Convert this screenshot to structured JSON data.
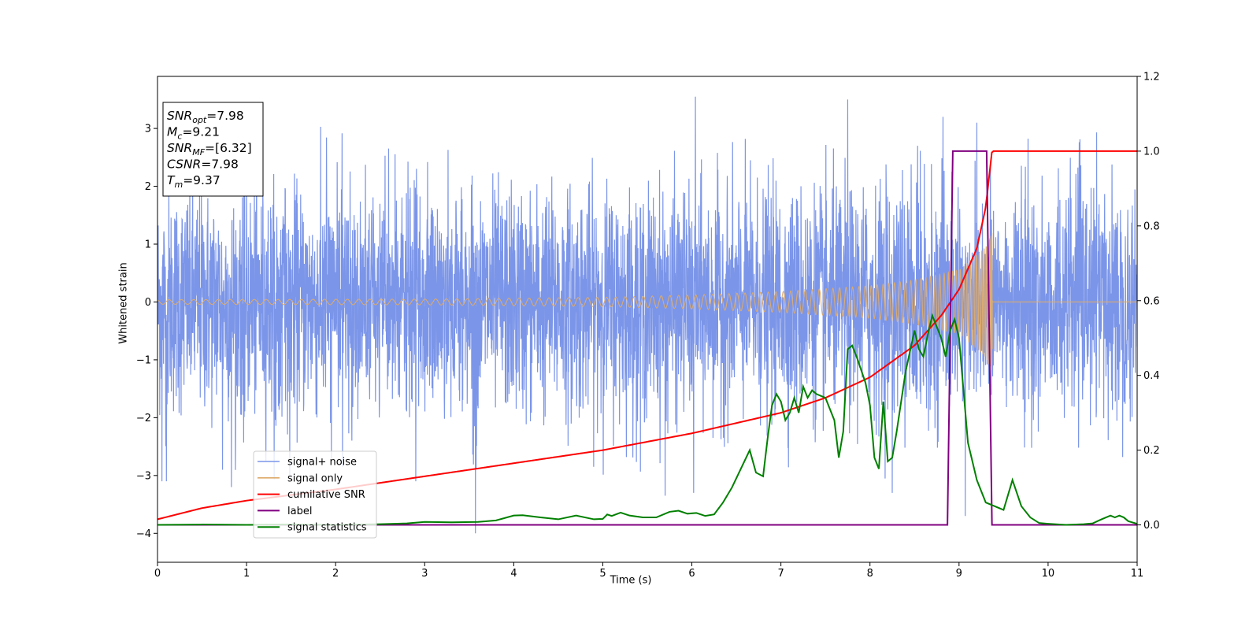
{
  "chart_data": {
    "type": "line",
    "xlabel": "Time (s)",
    "ylabel": "Whitened strain",
    "xlim": [
      0,
      11
    ],
    "ylim": [
      -4.5,
      3.9
    ],
    "y2lim": [
      -0.1,
      1.2
    ],
    "xticks": [
      0,
      1,
      2,
      3,
      4,
      5,
      6,
      7,
      8,
      9,
      10,
      11
    ],
    "yticks": [
      -4,
      -3,
      -2,
      -1,
      0,
      1,
      2,
      3
    ],
    "y2ticks": [
      "0.0",
      "0.2",
      "0.4",
      "0.6",
      "0.8",
      "1.0",
      "1.2"
    ],
    "legend_position": "lower-left",
    "annotation": {
      "lines": [
        {
          "base": "SNR",
          "sub": "opt",
          "value": "=7.98"
        },
        {
          "base": "M",
          "sub": "c",
          "value": "=9.21"
        },
        {
          "base": "SNR",
          "sub": "MF",
          "value": "=[6.32]"
        },
        {
          "base": "CSNR",
          "sub": "",
          "value": "=7.98"
        },
        {
          "base": "T",
          "sub": "m",
          "value": "=9.37"
        }
      ]
    },
    "series": [
      {
        "name": "signal+ noise",
        "color": "#7b95e8",
        "axis": "left",
        "kind": "noise",
        "amplitude_envelope": 3.1,
        "notable_spikes": [
          {
            "x": 0.05,
            "y": -3.1
          },
          {
            "x": 0.1,
            "y": -3.1
          },
          {
            "x": 0.73,
            "y": -2.9
          },
          {
            "x": 0.83,
            "y": -3.2
          },
          {
            "x": 2.9,
            "y": -3.1
          },
          {
            "x": 3.57,
            "y": -4.0
          },
          {
            "x": 5.7,
            "y": -3.35
          },
          {
            "x": 6.04,
            "y": 3.55
          },
          {
            "x": 6.02,
            "y": -3.3
          },
          {
            "x": 7.75,
            "y": 3.5
          },
          {
            "x": 8.25,
            "y": -3.3
          },
          {
            "x": 8.82,
            "y": 3.2
          },
          {
            "x": 9.07,
            "y": -3.7
          },
          {
            "x": 9.2,
            "y": 3.1
          }
        ]
      },
      {
        "name": "signal only",
        "color": "#deab6b",
        "axis": "left",
        "kind": "chirp",
        "envelope": [
          [
            0,
            0.04
          ],
          [
            3,
            0.05
          ],
          [
            5,
            0.08
          ],
          [
            6,
            0.12
          ],
          [
            7,
            0.18
          ],
          [
            8,
            0.28
          ],
          [
            8.5,
            0.38
          ],
          [
            9,
            0.55
          ],
          [
            9.3,
            0.95
          ],
          [
            9.37,
            1.2
          ],
          [
            9.38,
            0
          ],
          [
            11,
            0
          ]
        ]
      },
      {
        "name": "cumilative SNR",
        "color": "#ff0000",
        "axis": "right",
        "x": [
          0,
          0.5,
          1,
          1.5,
          2,
          3,
          4,
          5,
          6,
          7,
          7.5,
          8,
          8.5,
          8.8,
          9.0,
          9.2,
          9.3,
          9.37,
          10,
          11
        ],
        "y": [
          0.015,
          0.045,
          0.065,
          0.08,
          0.095,
          0.13,
          0.165,
          0.2,
          0.245,
          0.3,
          0.34,
          0.395,
          0.48,
          0.56,
          0.63,
          0.74,
          0.85,
          1.0,
          1.0,
          1.0
        ]
      },
      {
        "name": "label",
        "color": "#800080",
        "axis": "right",
        "x": [
          0,
          8.87,
          8.93,
          9.31,
          9.37,
          11
        ],
        "y": [
          0,
          0,
          1,
          1,
          0,
          0
        ]
      },
      {
        "name": "signal statistics",
        "color": "#008000",
        "axis": "right",
        "x": [
          0,
          0.5,
          1,
          1.5,
          2,
          2.5,
          2.8,
          3.0,
          3.3,
          3.6,
          3.8,
          4.0,
          4.1,
          4.3,
          4.5,
          4.7,
          4.9,
          5.0,
          5.05,
          5.1,
          5.2,
          5.3,
          5.45,
          5.6,
          5.75,
          5.85,
          5.95,
          6.05,
          6.15,
          6.25,
          6.35,
          6.45,
          6.55,
          6.65,
          6.72,
          6.8,
          6.85,
          6.9,
          6.95,
          7.0,
          7.05,
          7.1,
          7.15,
          7.2,
          7.25,
          7.3,
          7.35,
          7.4,
          7.5,
          7.6,
          7.65,
          7.7,
          7.75,
          7.8,
          7.85,
          7.95,
          8.0,
          8.05,
          8.1,
          8.15,
          8.2,
          8.25,
          8.3,
          8.35,
          8.4,
          8.5,
          8.55,
          8.6,
          8.65,
          8.7,
          8.75,
          8.8,
          8.85,
          8.9,
          8.95,
          9.0,
          9.1,
          9.2,
          9.3,
          9.4,
          9.5,
          9.6,
          9.7,
          9.8,
          9.9,
          10.0,
          10.2,
          10.4,
          10.5,
          10.6,
          10.7,
          10.75,
          10.8,
          10.85,
          10.9,
          11.0
        ],
        "y": [
          0.0,
          0.001,
          0.0,
          0.001,
          0.0,
          0.002,
          0.004,
          0.008,
          0.007,
          0.008,
          0.012,
          0.025,
          0.026,
          0.02,
          0.015,
          0.025,
          0.015,
          0.016,
          0.028,
          0.024,
          0.033,
          0.025,
          0.02,
          0.02,
          0.035,
          0.038,
          0.03,
          0.032,
          0.024,
          0.028,
          0.06,
          0.1,
          0.15,
          0.2,
          0.14,
          0.13,
          0.23,
          0.32,
          0.35,
          0.33,
          0.28,
          0.3,
          0.34,
          0.3,
          0.37,
          0.34,
          0.36,
          0.35,
          0.34,
          0.28,
          0.18,
          0.25,
          0.47,
          0.48,
          0.45,
          0.38,
          0.32,
          0.18,
          0.15,
          0.33,
          0.17,
          0.18,
          0.25,
          0.33,
          0.41,
          0.52,
          0.47,
          0.45,
          0.51,
          0.56,
          0.53,
          0.5,
          0.45,
          0.52,
          0.55,
          0.5,
          0.22,
          0.12,
          0.06,
          0.05,
          0.04,
          0.12,
          0.05,
          0.02,
          0.005,
          0.003,
          0.0,
          0.002,
          0.004,
          0.015,
          0.025,
          0.02,
          0.025,
          0.02,
          0.01,
          0.003
        ]
      }
    ]
  }
}
